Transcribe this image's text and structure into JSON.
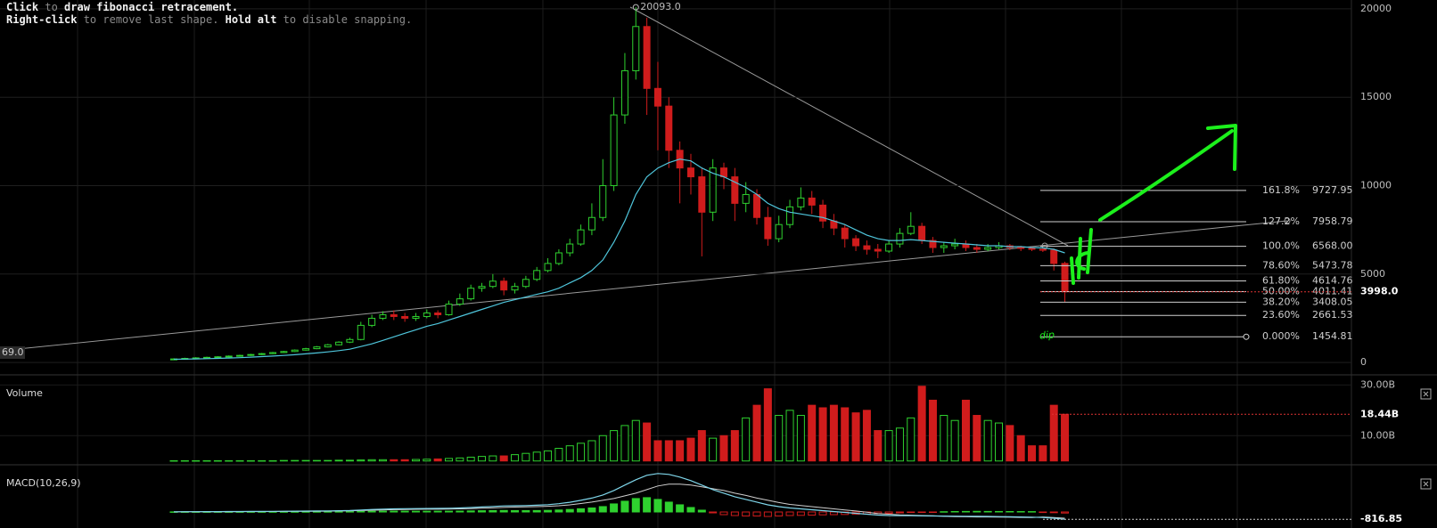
{
  "hints": [
    [
      {
        "text": "Click",
        "bold": true
      },
      {
        "text": " to ",
        "bold": false
      },
      {
        "text": "draw fibonacci retracement.",
        "bold": true
      }
    ],
    [
      {
        "text": "Right-click",
        "bold": true
      },
      {
        "text": " to remove last shape. ",
        "bold": false
      },
      {
        "text": "Hold alt",
        "bold": true
      },
      {
        "text": " to disable snapping.",
        "bold": false
      }
    ]
  ],
  "chart_data": [
    {
      "type": "candlestick",
      "open": [
        180,
        200,
        230,
        260,
        290,
        320,
        360,
        400,
        450,
        500,
        560,
        620,
        700,
        780,
        880,
        1000,
        1150,
        1300,
        2100,
        2500,
        2700,
        2600,
        2500,
        2600,
        2800,
        2700,
        3300,
        3600,
        4200,
        4300,
        4600,
        4100,
        4300,
        4700,
        5200,
        5600,
        6200,
        6700,
        7500,
        8200,
        10000,
        14000,
        16500,
        19000,
        15500,
        14500,
        12000,
        11000,
        10500,
        8500,
        11000,
        10500,
        9000,
        9500,
        8200,
        7000,
        7800,
        8800,
        9300,
        8900,
        8000,
        7600,
        7000,
        6600,
        6400,
        6300,
        6700,
        7300,
        7700,
        6900,
        6500,
        6600,
        6700,
        6500,
        6400,
        6500,
        6600,
        6500,
        6450,
        6400,
        6350,
        5600
      ],
      "high": [
        240,
        270,
        300,
        330,
        360,
        400,
        440,
        490,
        540,
        600,
        660,
        740,
        830,
        930,
        1050,
        1200,
        1400,
        2300,
        2700,
        2900,
        2950,
        2800,
        2800,
        3000,
        2950,
        3500,
        3900,
        4400,
        4500,
        5000,
        4800,
        4500,
        4900,
        5400,
        5900,
        6400,
        7000,
        7800,
        9000,
        11500,
        15000,
        17500,
        20093,
        19500,
        17000,
        15000,
        12500,
        11800,
        11000,
        11500,
        11300,
        11000,
        10200,
        9800,
        8800,
        8300,
        9200,
        9900,
        9700,
        9200,
        8400,
        7800,
        7200,
        6900,
        6700,
        6900,
        7600,
        8500,
        7900,
        7100,
        6800,
        7000,
        6900,
        6700,
        6700,
        6800,
        6700,
        6600,
        6550,
        6500,
        6450,
        5700
      ],
      "low": [
        150,
        170,
        200,
        230,
        260,
        290,
        330,
        370,
        420,
        470,
        530,
        590,
        670,
        750,
        850,
        970,
        1100,
        1250,
        2000,
        2400,
        2400,
        2300,
        2350,
        2500,
        2500,
        2650,
        3200,
        3500,
        4000,
        4200,
        3800,
        3900,
        4200,
        4600,
        5100,
        5500,
        6000,
        6600,
        7200,
        8000,
        9700,
        13500,
        16000,
        14000,
        12000,
        11000,
        9000,
        9500,
        6000,
        8000,
        9800,
        8000,
        8500,
        7800,
        6600,
        6800,
        7600,
        8600,
        8400,
        7600,
        7200,
        6500,
        6300,
        6100,
        5900,
        6200,
        6500,
        7200,
        6700,
        6200,
        6200,
        6400,
        6300,
        6200,
        6300,
        6400,
        6350,
        6300,
        6300,
        6250,
        5200,
        3400
      ],
      "close": [
        200,
        230,
        260,
        290,
        320,
        360,
        400,
        450,
        500,
        560,
        620,
        700,
        780,
        880,
        1000,
        1150,
        1300,
        2100,
        2500,
        2700,
        2600,
        2500,
        2600,
        2800,
        2700,
        3300,
        3600,
        4200,
        4300,
        4600,
        4100,
        4300,
        4700,
        5200,
        5600,
        6200,
        6700,
        7500,
        8200,
        10000,
        14000,
        16500,
        19000,
        15500,
        14500,
        12000,
        11000,
        10500,
        8500,
        11000,
        10500,
        9000,
        9500,
        8200,
        7000,
        7800,
        8800,
        9300,
        8900,
        8000,
        7600,
        7000,
        6600,
        6400,
        6300,
        6700,
        7300,
        7700,
        6900,
        6500,
        6600,
        6700,
        6500,
        6400,
        6500,
        6600,
        6500,
        6450,
        6400,
        6350,
        5600,
        3998
      ],
      "up_color": "#2fd12f",
      "down_color": "#d01c1c",
      "ylim": [
        -700,
        20500
      ],
      "yticks": [
        0,
        5000,
        10000,
        15000,
        20000
      ],
      "grid": true,
      "ma": {
        "color": "#4fc6dc",
        "values": [
          180,
          190,
          200,
          215,
          230,
          250,
          270,
          300,
          330,
          360,
          400,
          440,
          490,
          540,
          600,
          670,
          750,
          900,
          1050,
          1250,
          1450,
          1650,
          1850,
          2050,
          2200,
          2400,
          2600,
          2800,
          3000,
          3200,
          3400,
          3550,
          3700,
          3850,
          4000,
          4200,
          4500,
          4800,
          5200,
          5800,
          6800,
          8000,
          9500,
          10500,
          11000,
          11300,
          11500,
          11400,
          11000,
          10700,
          10500,
          10200,
          9900,
          9500,
          9000,
          8700,
          8500,
          8400,
          8300,
          8200,
          8000,
          7800,
          7500,
          7200,
          7000,
          6900,
          6900,
          6950,
          6900,
          6850,
          6800,
          6750,
          6700,
          6650,
          6600,
          6600,
          6550,
          6550,
          6500,
          6480,
          6400,
          6200
        ]
      },
      "peak": {
        "value": 20093,
        "label": "20093.0"
      },
      "current": {
        "value": 3998,
        "label": "3998.0"
      },
      "fib_levels": [
        {
          "ratio": "161.8%",
          "price": {
            "value": 9727.95,
            "label": "9727.95"
          }
        },
        {
          "ratio": "127.2%",
          "price": {
            "value": 7958.79,
            "label": "7958.79"
          }
        },
        {
          "ratio": "100.0%",
          "price": {
            "value": 6568,
            "label": "6568.00"
          }
        },
        {
          "ratio": "78.60%",
          "price": {
            "value": 5473.78,
            "label": "5473.78"
          }
        },
        {
          "ratio": "61.80%",
          "price": {
            "value": 4614.76,
            "label": "4614.76"
          }
        },
        {
          "ratio": "50.00%",
          "price": {
            "value": 4011.41,
            "label": "4011.41"
          }
        },
        {
          "ratio": "38.20%",
          "price": {
            "value": 3408.05,
            "label": "3408.05"
          }
        },
        {
          "ratio": "23.60%",
          "price": {
            "value": 2661.53,
            "label": "2661.53"
          }
        },
        {
          "ratio": "0.000%",
          "price": {
            "value": 1454.81,
            "label": "1454.81"
          }
        }
      ],
      "edge_label": "69.0",
      "annotation": "dip"
    },
    {
      "type": "bar",
      "title": "Volume",
      "values": [
        0.1,
        0.1,
        0.1,
        0.1,
        0.1,
        0.1,
        0.1,
        0.1,
        0.1,
        0.1,
        0.2,
        0.2,
        0.2,
        0.2,
        0.2,
        0.3,
        0.3,
        0.4,
        0.5,
        0.5,
        0.5,
        0.5,
        0.6,
        0.7,
        0.8,
        1,
        1.2,
        1.5,
        1.8,
        2,
        2,
        2.5,
        3,
        3.5,
        4,
        5,
        6,
        7,
        8,
        10,
        12,
        14,
        16,
        15,
        8,
        8,
        8,
        9,
        12,
        9,
        10,
        12,
        17,
        22,
        28.5,
        18,
        20,
        18,
        22,
        21,
        22,
        21,
        19,
        20,
        12,
        12,
        13,
        17,
        29.5,
        24,
        18,
        16,
        24,
        18,
        16,
        15,
        14,
        10,
        6,
        6,
        22,
        18.44
      ],
      "ylim": [
        -1.5,
        34
      ],
      "yticks": [
        {
          "value": 30,
          "label": "30.00B"
        },
        {
          "value": 10,
          "label": "10.00B"
        }
      ],
      "current": {
        "value": 18.44,
        "label": "18.44B"
      }
    },
    {
      "type": "macd",
      "title": "MACD(10,26,9)",
      "histogram": [
        10,
        10,
        10,
        10,
        12,
        12,
        14,
        15,
        16,
        18,
        20,
        22,
        25,
        28,
        30,
        35,
        40,
        60,
        80,
        90,
        95,
        90,
        85,
        85,
        90,
        90,
        100,
        120,
        140,
        160,
        170,
        150,
        150,
        160,
        180,
        220,
        280,
        360,
        450,
        600,
        900,
        1200,
        1500,
        1600,
        1400,
        1100,
        800,
        500,
        200,
        -100,
        -300,
        -400,
        -450,
        -450,
        -500,
        -450,
        -400,
        -380,
        -350,
        -320,
        -300,
        -280,
        -260,
        -220,
        -180,
        -150,
        -100,
        -60,
        -40,
        -20,
        30,
        50,
        60,
        70,
        60,
        55,
        50,
        45,
        40,
        -60,
        -80,
        -120
      ],
      "macd": {
        "color": "#7fd6ea",
        "values": [
          20,
          25,
          30,
          35,
          40,
          45,
          50,
          55,
          60,
          70,
          80,
          90,
          100,
          110,
          120,
          140,
          160,
          220,
          280,
          320,
          350,
          370,
          380,
          390,
          400,
          420,
          450,
          500,
          560,
          620,
          680,
          700,
          720,
          760,
          820,
          920,
          1080,
          1300,
          1550,
          1900,
          2400,
          3000,
          3600,
          4100,
          4300,
          4200,
          3900,
          3500,
          3000,
          2500,
          2100,
          1700,
          1400,
          1100,
          800,
          600,
          450,
          350,
          250,
          150,
          50,
          -50,
          -150,
          -250,
          -350,
          -400,
          -420,
          -420,
          -440,
          -450,
          -460,
          -470,
          -480,
          -490,
          -500,
          -520,
          -540,
          -560,
          -580,
          -620,
          -700,
          -816.85
        ]
      },
      "signal": {
        "color": "#cfcfcf",
        "values": [
          10,
          15,
          20,
          25,
          28,
          33,
          36,
          40,
          44,
          52,
          60,
          68,
          75,
          82,
          90,
          105,
          120,
          160,
          200,
          230,
          255,
          280,
          295,
          305,
          310,
          330,
          350,
          380,
          420,
          460,
          510,
          550,
          570,
          600,
          640,
          700,
          800,
          940,
          1100,
          1300,
          1500,
          1800,
          2100,
          2500,
          2900,
          3100,
          3100,
          3000,
          2800,
          2600,
          2400,
          2100,
          1850,
          1550,
          1300,
          1050,
          850,
          730,
          600,
          470,
          350,
          230,
          110,
          -30,
          -170,
          -250,
          -320,
          -360,
          -400,
          -430,
          -490,
          -520,
          -540,
          -560,
          -560,
          -575,
          -590,
          -605,
          -620,
          -560,
          -620,
          -700
        ]
      },
      "up_color": "#2fd12f",
      "down_color": "#d01c1c",
      "ylim": [
        -1790,
        5270
      ],
      "current": {
        "value": -816.85,
        "label": "-816.85"
      }
    }
  ]
}
